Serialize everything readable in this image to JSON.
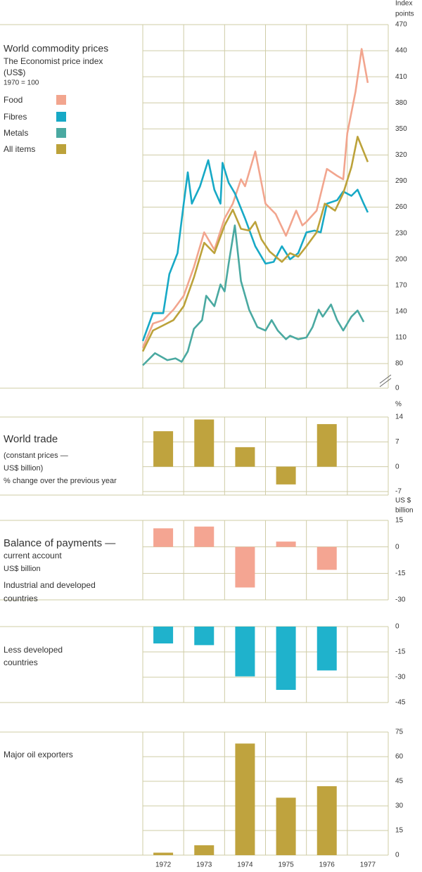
{
  "chart_data": [
    {
      "type": "line",
      "text_lines": [
        "World commodity prices",
        "The Economist price index",
        "(US$)",
        "1970 = 100"
      ],
      "unit_label": [
        "Index",
        "points"
      ],
      "xlim": [
        1972,
        1978
      ],
      "ylim": [
        80,
        470
      ],
      "yticks": [
        80,
        110,
        140,
        170,
        200,
        230,
        260,
        290,
        320,
        350,
        380,
        410,
        440,
        470
      ],
      "y_break_tick": 0,
      "grid": true,
      "series": [
        {
          "name": "Food",
          "color": "#f2a58e",
          "x": [
            1972.0,
            1972.25,
            1972.5,
            1972.75,
            1973.0,
            1973.25,
            1973.5,
            1973.75,
            1974.0,
            1974.2,
            1974.4,
            1974.5,
            1974.75,
            1974.9,
            1975.0,
            1975.25,
            1975.5,
            1975.75,
            1975.9,
            1976.0,
            1976.25,
            1976.5,
            1976.75,
            1976.9,
            1977.0,
            1977.2,
            1977.35,
            1977.5
          ],
          "values": [
            98,
            126,
            130,
            142,
            158,
            191,
            231,
            211,
            247,
            264,
            292,
            284,
            324,
            288,
            264,
            252,
            227,
            256,
            239,
            243,
            256,
            304,
            296,
            292,
            345,
            393,
            442,
            403
          ]
        },
        {
          "name": "Fibres",
          "color": "#17a9c6",
          "x": [
            1972.0,
            1972.25,
            1972.5,
            1972.65,
            1972.85,
            1973.0,
            1973.1,
            1973.2,
            1973.4,
            1973.6,
            1973.75,
            1973.9,
            1973.95,
            1974.1,
            1974.25,
            1974.5,
            1974.75,
            1975.0,
            1975.2,
            1975.4,
            1975.6,
            1975.8,
            1976.0,
            1976.2,
            1976.35,
            1976.5,
            1976.75,
            1976.9,
            1977.1,
            1977.25,
            1977.4,
            1977.5
          ],
          "values": [
            106,
            138,
            138,
            183,
            207,
            264,
            300,
            264,
            284,
            314,
            280,
            264,
            311,
            288,
            276,
            247,
            215,
            195,
            197,
            215,
            200,
            207,
            231,
            233,
            231,
            264,
            268,
            278,
            273,
            280,
            264,
            254
          ]
        },
        {
          "name": "Metals",
          "color": "#4aa9a1",
          "x": [
            1972.0,
            1972.3,
            1972.6,
            1972.8,
            1972.95,
            1973.1,
            1973.25,
            1973.45,
            1973.55,
            1973.75,
            1973.9,
            1974.0,
            1974.1,
            1974.25,
            1974.4,
            1974.6,
            1974.8,
            1975.0,
            1975.15,
            1975.3,
            1975.5,
            1975.6,
            1975.8,
            1976.0,
            1976.15,
            1976.3,
            1976.4,
            1976.6,
            1976.75,
            1976.9,
            1977.1,
            1977.25,
            1977.4
          ],
          "values": [
            78,
            92,
            84,
            86,
            82,
            94,
            120,
            130,
            158,
            146,
            171,
            163,
            195,
            239,
            175,
            142,
            122,
            118,
            130,
            118,
            108,
            112,
            108,
            110,
            122,
            142,
            134,
            148,
            130,
            118,
            134,
            141,
            128
          ]
        },
        {
          "name": "All items",
          "color": "#bca23a",
          "x": [
            1972.0,
            1972.25,
            1972.5,
            1972.75,
            1973.0,
            1973.25,
            1973.5,
            1973.75,
            1974.0,
            1974.2,
            1974.4,
            1974.6,
            1974.75,
            1974.9,
            1975.1,
            1975.4,
            1975.6,
            1975.8,
            1976.0,
            1976.25,
            1976.45,
            1976.7,
            1976.9,
            1977.1,
            1977.25,
            1977.5
          ],
          "values": [
            94,
            118,
            124,
            130,
            146,
            179,
            219,
            207,
            239,
            257,
            235,
            233,
            243,
            223,
            209,
            197,
            207,
            203,
            215,
            231,
            264,
            256,
            276,
            306,
            341,
            312
          ]
        }
      ]
    },
    {
      "type": "bar",
      "text_lines": [
        "World trade",
        "(constant prices —",
        "US$ billion)",
        "% change over the previous year"
      ],
      "unit_label": [
        "%"
      ],
      "ylim": [
        -8,
        14
      ],
      "yticks": [
        -7,
        0,
        7,
        14
      ],
      "grid": true,
      "color": "#bfa33e",
      "values": [
        10,
        13.3,
        5.5,
        -5,
        12,
        null
      ]
    },
    {
      "type": "bar",
      "text_lines": [
        "Balance of payments —",
        "current account",
        "US$ billion",
        "Industrial and developed",
        "countries"
      ],
      "unit_label": [
        "US $",
        "billion"
      ],
      "ylim": [
        -30,
        15
      ],
      "yticks": [
        -30,
        -15,
        0,
        15
      ],
      "grid": true,
      "color": "#f4a592",
      "values": [
        10.5,
        11.5,
        -23,
        3,
        -13,
        null
      ]
    },
    {
      "type": "bar",
      "text_lines": [
        "Less developed",
        "countries"
      ],
      "ylim": [
        -45,
        0
      ],
      "yticks": [
        -45,
        -30,
        -15,
        0
      ],
      "grid": true,
      "color": "#1fb2cc",
      "values": [
        -10,
        -11,
        -29.5,
        -37.5,
        -26,
        null
      ]
    },
    {
      "type": "bar",
      "text_lines": [
        "Major oil exporters"
      ],
      "categories": [
        "1972",
        "1973",
        "1974",
        "1975",
        "1976",
        "1977"
      ],
      "ylim": [
        0,
        75
      ],
      "yticks": [
        0,
        15,
        30,
        45,
        60,
        75
      ],
      "grid": true,
      "color": "#bfa33e",
      "values": [
        1.5,
        6,
        68,
        35,
        42,
        null
      ]
    }
  ]
}
